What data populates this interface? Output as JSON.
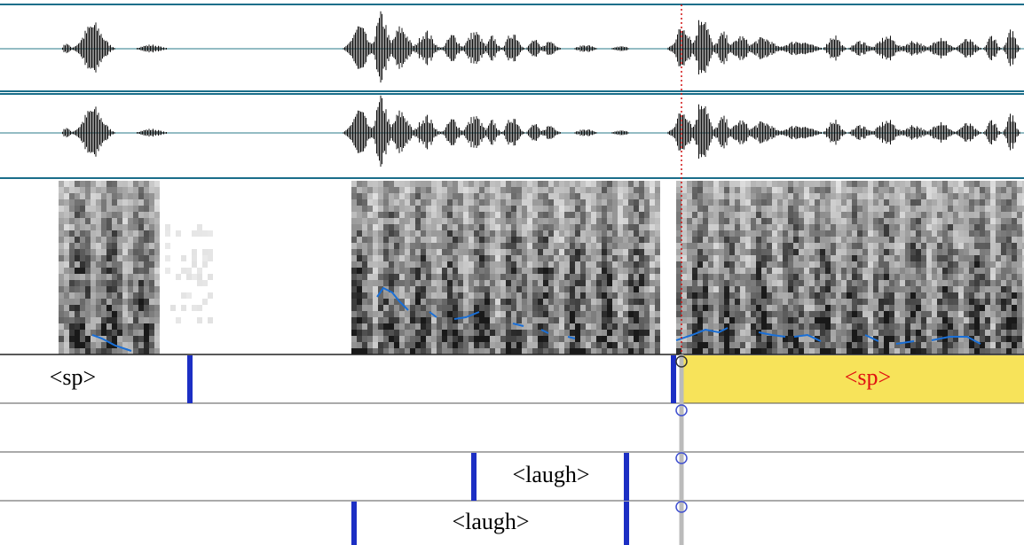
{
  "tiers": [
    {
      "labels": [
        "<sp>",
        "<sp>"
      ]
    },
    {
      "labels": [
        "<laugh>"
      ]
    },
    {
      "labels": [
        "<laugh>"
      ]
    }
  ]
}
